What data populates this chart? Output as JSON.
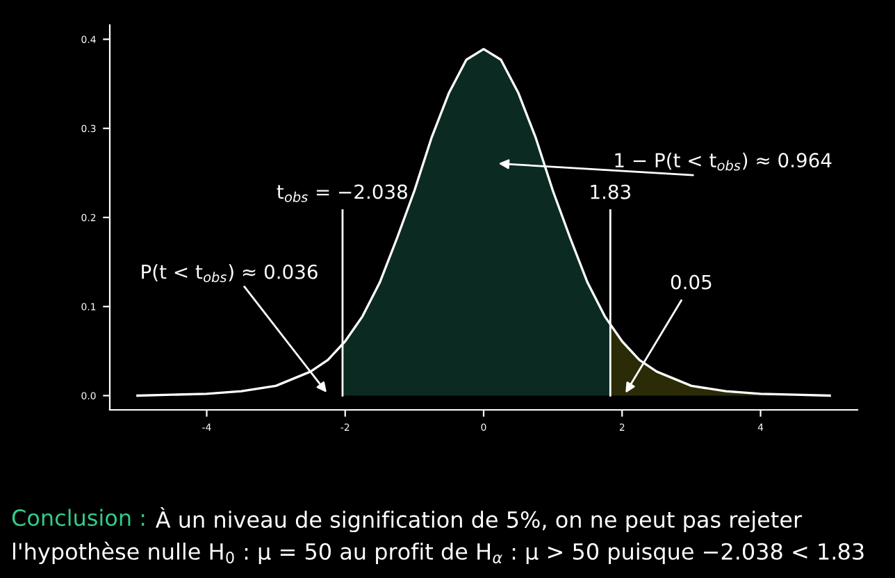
{
  "chart_data": {
    "type": "area",
    "grid": false,
    "legend": false,
    "xlim": [
      -5.4,
      5.4
    ],
    "ylim": [
      -0.016,
      0.416
    ],
    "xticks": [
      -4,
      -2,
      0,
      2,
      4
    ],
    "yticks": [
      {
        "value": 0,
        "label": "0.0"
      },
      {
        "value": 0.1,
        "label": "0.1"
      },
      {
        "value": 0.2,
        "label": "0.2"
      },
      {
        "value": 0.3,
        "label": "0.3"
      },
      {
        "value": 0.4,
        "label": "0.4"
      }
    ],
    "series": [
      {
        "color": "#0b2a22",
        "x": [
          -2.038,
          -1.75,
          -1.5,
          -1.25,
          -1,
          -0.75,
          -0.5,
          -0.25,
          0,
          0.25,
          0.5,
          0.75,
          1,
          1.25,
          1.5,
          1.75,
          1.83
        ],
        "values": [
          0.057,
          0.089,
          0.127,
          0.177,
          0.23,
          0.29,
          0.34,
          0.377,
          0.389,
          0.377,
          0.34,
          0.29,
          0.23,
          0.177,
          0.127,
          0.089,
          0.08
        ]
      },
      {
        "color": "#2b2c07",
        "x": [
          1.83,
          2,
          2.25,
          2.5,
          3,
          3.5,
          4,
          4.5,
          5
        ],
        "values": [
          0.08,
          0.061,
          0.04,
          0.027,
          0.011,
          0.005,
          0.002,
          0.001,
          0.0
        ]
      },
      {
        "type": "line",
        "color": "#ffffff",
        "x": [
          -5,
          -4.5,
          -4,
          -3.5,
          -3,
          -2.5,
          -2.25,
          -2,
          -1.75,
          -1.5,
          -1.25,
          -1,
          -0.75,
          -0.5,
          -0.25,
          0,
          0.25,
          0.5,
          0.75,
          1,
          1.25,
          1.5,
          1.75,
          2,
          2.25,
          2.5,
          3,
          3.5,
          4,
          4.5,
          5
        ],
        "values": [
          0.0,
          0.001,
          0.002,
          0.005,
          0.011,
          0.027,
          0.04,
          0.061,
          0.089,
          0.127,
          0.177,
          0.23,
          0.29,
          0.34,
          0.377,
          0.389,
          0.377,
          0.34,
          0.29,
          0.23,
          0.177,
          0.127,
          0.089,
          0.061,
          0.04,
          0.027,
          0.011,
          0.005,
          0.002,
          0.001,
          0.0
        ]
      }
    ],
    "ref_lines": [
      {
        "axis": "x",
        "value": -2.038,
        "label": "t$_{obs}$ = −2.038",
        "color": "#ffffff"
      },
      {
        "axis": "x",
        "value": 1.83,
        "label": "1.83",
        "color": "#ffffff"
      }
    ],
    "annotations": [
      "P(t < t$_{obs}$) ≈ 0.036",
      "1 − P(t < t$_{obs}$) ≈ 0.964",
      {
        "text": "0.05",
        "x": 2.05,
        "y": 0.003
      },
      "Conclusion :",
      "À un niveau de signification de 5%, on ne peut pas rejeter",
      "l'hypothèse nulle H$_{0}$ : μ = 50 au profit de H$_{α}$ : μ > 50 puisque −2.038 < 1.83"
    ]
  }
}
